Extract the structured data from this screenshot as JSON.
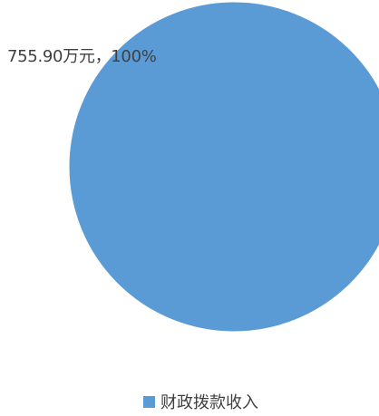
{
  "chart_data": {
    "type": "pie",
    "slices": [
      {
        "name": "财政拨款收入",
        "value": 755.9,
        "percent": 100,
        "label": "755.90万元，100%",
        "color": "#5B9BD5"
      }
    ],
    "legend": {
      "placement": "bottom",
      "items": [
        "财政拨款收入"
      ]
    }
  }
}
